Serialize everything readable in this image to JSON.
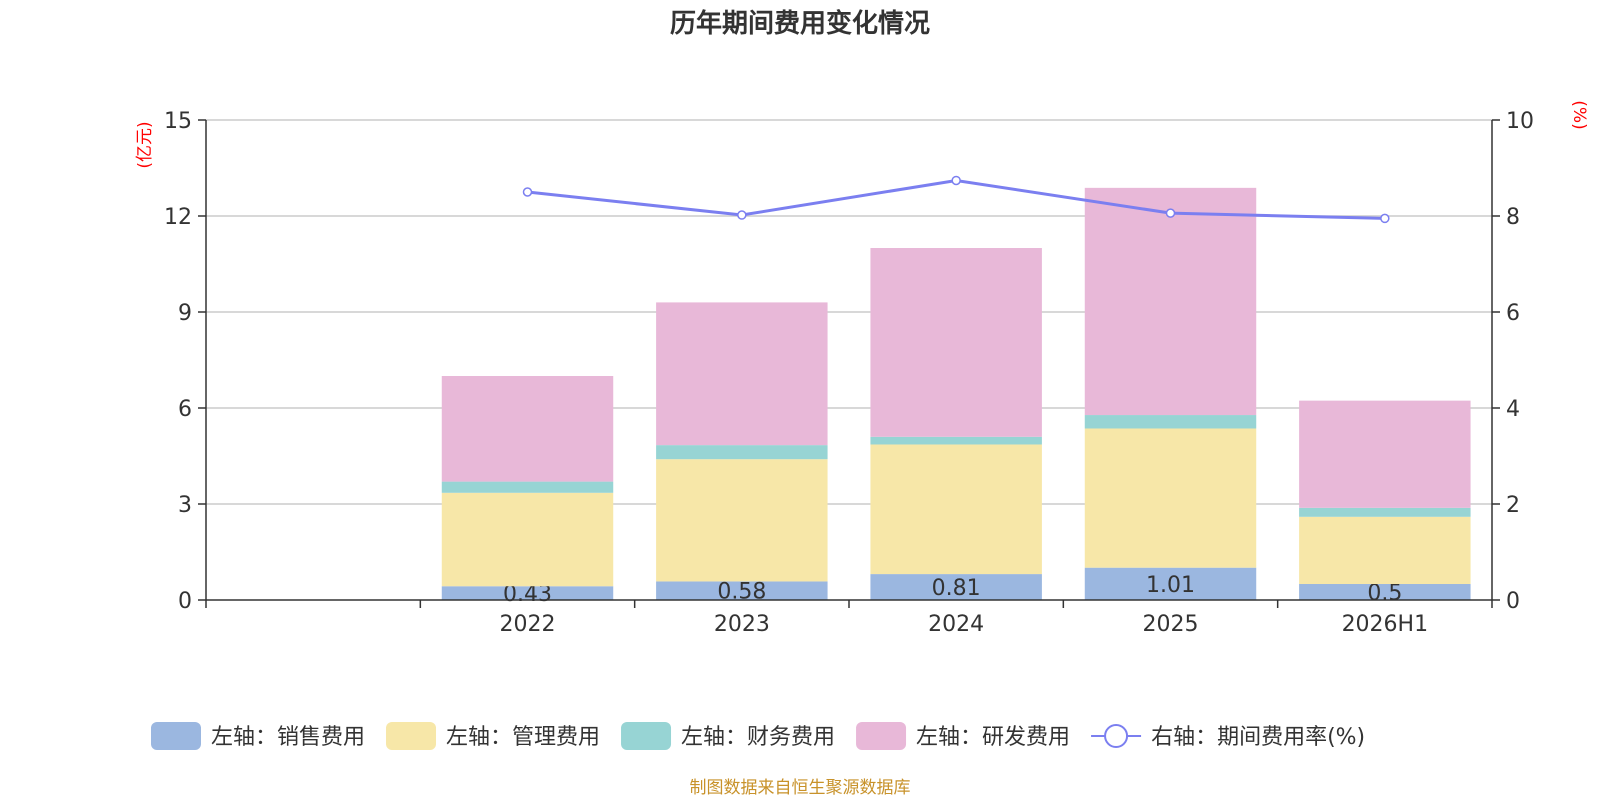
{
  "chart_data": {
    "type": "bar",
    "title": "历年期间费用变化情况",
    "categories": [
      "",
      "2022",
      "2023",
      "2024",
      "2025",
      "2026H1"
    ],
    "left_axis": {
      "unit": "(亿元)",
      "ylim": [
        0,
        15
      ],
      "ticks": [
        "0",
        "3",
        "6",
        "9",
        "12",
        "15"
      ]
    },
    "right_axis": {
      "unit": "(%)",
      "ylim": [
        0,
        10
      ],
      "ticks": [
        "0",
        "2",
        "4",
        "6",
        "8",
        "10"
      ]
    },
    "stacked": true,
    "series": [
      {
        "name": "左轴：销售费用",
        "axis": "left",
        "color": "#9bb7e0",
        "values": [
          null,
          0.43,
          0.58,
          0.81,
          1.01,
          0.5
        ],
        "labels": [
          "",
          "0.43",
          "0.58",
          "0.81",
          "1.01",
          "0.5"
        ]
      },
      {
        "name": "左轴：管理费用",
        "axis": "left",
        "color": "#f7e7a8",
        "values": [
          null,
          2.92,
          3.82,
          4.05,
          4.35,
          2.1
        ]
      },
      {
        "name": "左轴：财务费用",
        "axis": "left",
        "color": "#97d4d4",
        "values": [
          null,
          0.35,
          0.44,
          0.24,
          0.42,
          0.28
        ]
      },
      {
        "name": "左轴：研发费用",
        "axis": "left",
        "color": "#e8b8d8",
        "values": [
          null,
          3.3,
          4.46,
          5.9,
          7.1,
          3.35
        ]
      },
      {
        "name": "右轴：期间费用率(%)",
        "axis": "right",
        "type": "line",
        "color": "#7b7ff0",
        "values": [
          null,
          8.5,
          8.02,
          8.74,
          8.06,
          7.95
        ]
      }
    ],
    "grid": true,
    "legend_position": "bottom",
    "source": "制图数据来自恒生聚源数据库"
  }
}
